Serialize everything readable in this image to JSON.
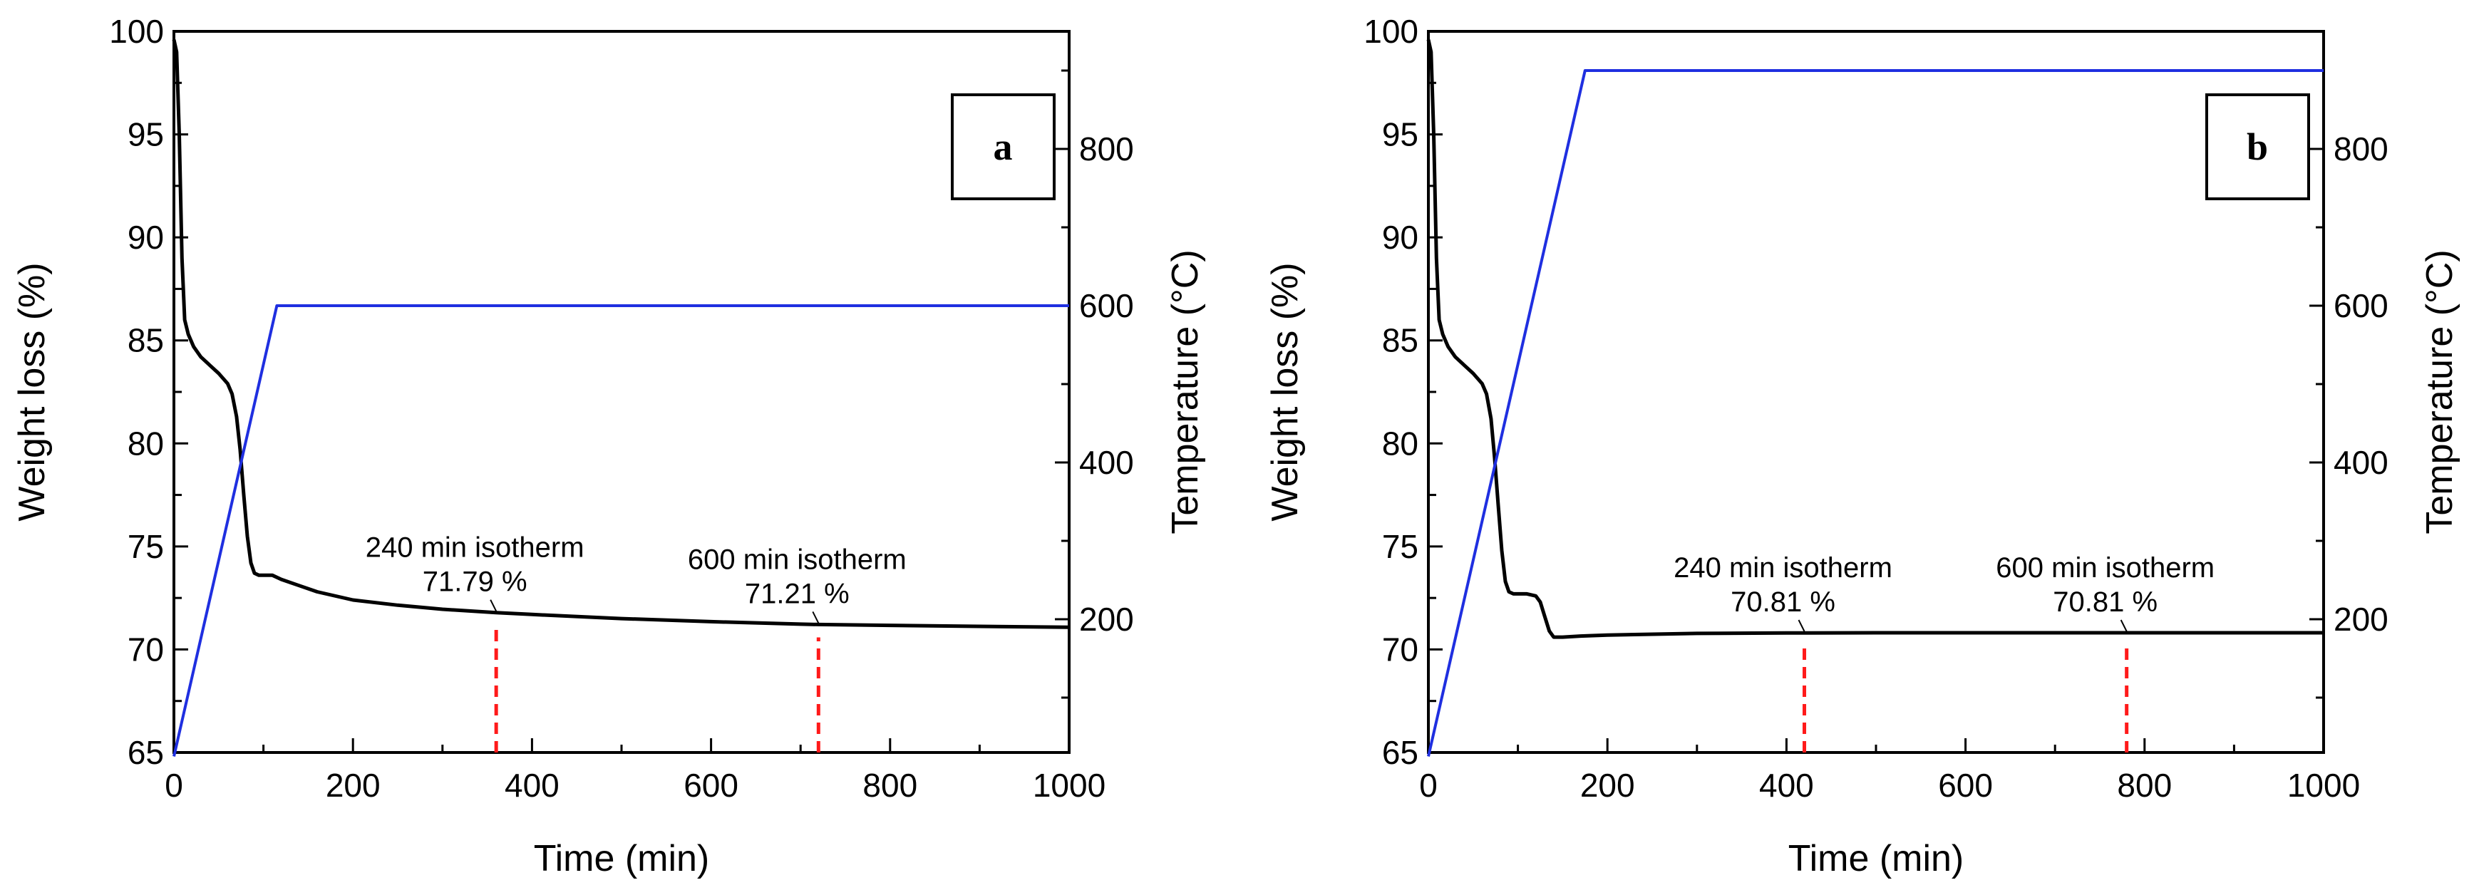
{
  "chart_data": [
    {
      "type": "line",
      "panel_label": "a",
      "xlabel": "Time (min)",
      "ylabel": "Weight loss (%)",
      "y2label": "Temperature (°C)",
      "xlim": [
        0,
        1000
      ],
      "ylim": [
        65,
        100
      ],
      "y2lim": [
        30,
        950
      ],
      "xticks": [
        0,
        200,
        400,
        600,
        800,
        1000
      ],
      "yticks": [
        65,
        70,
        75,
        80,
        85,
        90,
        95,
        100
      ],
      "y2ticks": [
        200,
        400,
        600,
        800
      ],
      "grid": false,
      "series": [
        {
          "axis": "left",
          "color": "#000000",
          "x": [
            0,
            3,
            6,
            9,
            12,
            16,
            22,
            30,
            40,
            50,
            60,
            65,
            70,
            74,
            78,
            82,
            86,
            90,
            95,
            100,
            110,
            120,
            140,
            160,
            200,
            250,
            300,
            360,
            400,
            500,
            600,
            700,
            720,
            800,
            900,
            1000
          ],
          "y": [
            99.6,
            99.0,
            95.0,
            89.0,
            86.0,
            85.3,
            84.7,
            84.2,
            83.8,
            83.4,
            82.9,
            82.4,
            81.3,
            79.7,
            77.5,
            75.5,
            74.2,
            73.7,
            73.6,
            73.6,
            73.6,
            73.4,
            73.1,
            72.8,
            72.4,
            72.15,
            71.95,
            71.79,
            71.7,
            71.5,
            71.35,
            71.23,
            71.21,
            71.17,
            71.12,
            71.08
          ]
        },
        {
          "axis": "right",
          "color": "#1f2fe0",
          "x": [
            0,
            115,
            1000
          ],
          "y": [
            25,
            600,
            600
          ]
        }
      ],
      "markers": [
        {
          "x": 360,
          "y": 71.79,
          "label": "240 min isotherm",
          "value": "71.79 %"
        },
        {
          "x": 720,
          "y": 71.21,
          "label": "600 min isotherm",
          "value": "71.21 %"
        }
      ]
    },
    {
      "type": "line",
      "panel_label": "b",
      "xlabel": "Time (min)",
      "ylabel": "Weight loss (%)",
      "y2label": "Temperature (°C)",
      "xlim": [
        0,
        1000
      ],
      "ylim": [
        65,
        100
      ],
      "y2lim": [
        30,
        950
      ],
      "xticks": [
        0,
        200,
        400,
        600,
        800,
        1000
      ],
      "yticks": [
        65,
        70,
        75,
        80,
        85,
        90,
        95,
        100
      ],
      "y2ticks": [
        200,
        400,
        600,
        800
      ],
      "grid": false,
      "series": [
        {
          "axis": "left",
          "color": "#000000",
          "x": [
            0,
            3,
            6,
            9,
            12,
            16,
            22,
            30,
            40,
            50,
            60,
            65,
            70,
            74,
            78,
            82,
            86,
            90,
            95,
            100,
            110,
            120,
            125,
            130,
            135,
            140,
            150,
            170,
            200,
            300,
            400,
            500,
            600,
            700,
            800,
            900,
            1000
          ],
          "y": [
            99.6,
            99.0,
            95.0,
            89.0,
            86.0,
            85.3,
            84.7,
            84.2,
            83.8,
            83.4,
            82.9,
            82.4,
            81.2,
            79.3,
            77.0,
            74.8,
            73.3,
            72.8,
            72.7,
            72.7,
            72.7,
            72.6,
            72.3,
            71.6,
            70.9,
            70.6,
            70.6,
            70.65,
            70.7,
            70.78,
            70.8,
            70.81,
            70.81,
            70.81,
            70.81,
            70.81,
            70.81
          ]
        },
        {
          "axis": "right",
          "color": "#1f2fe0",
          "x": [
            0,
            175,
            1000
          ],
          "y": [
            25,
            900,
            900
          ]
        }
      ],
      "markers": [
        {
          "x": 420,
          "y": 70.81,
          "label": "240 min isotherm",
          "value": "70.81 %"
        },
        {
          "x": 780,
          "y": 70.81,
          "label": "600 min isotherm",
          "value": "70.81 %"
        }
      ]
    }
  ]
}
